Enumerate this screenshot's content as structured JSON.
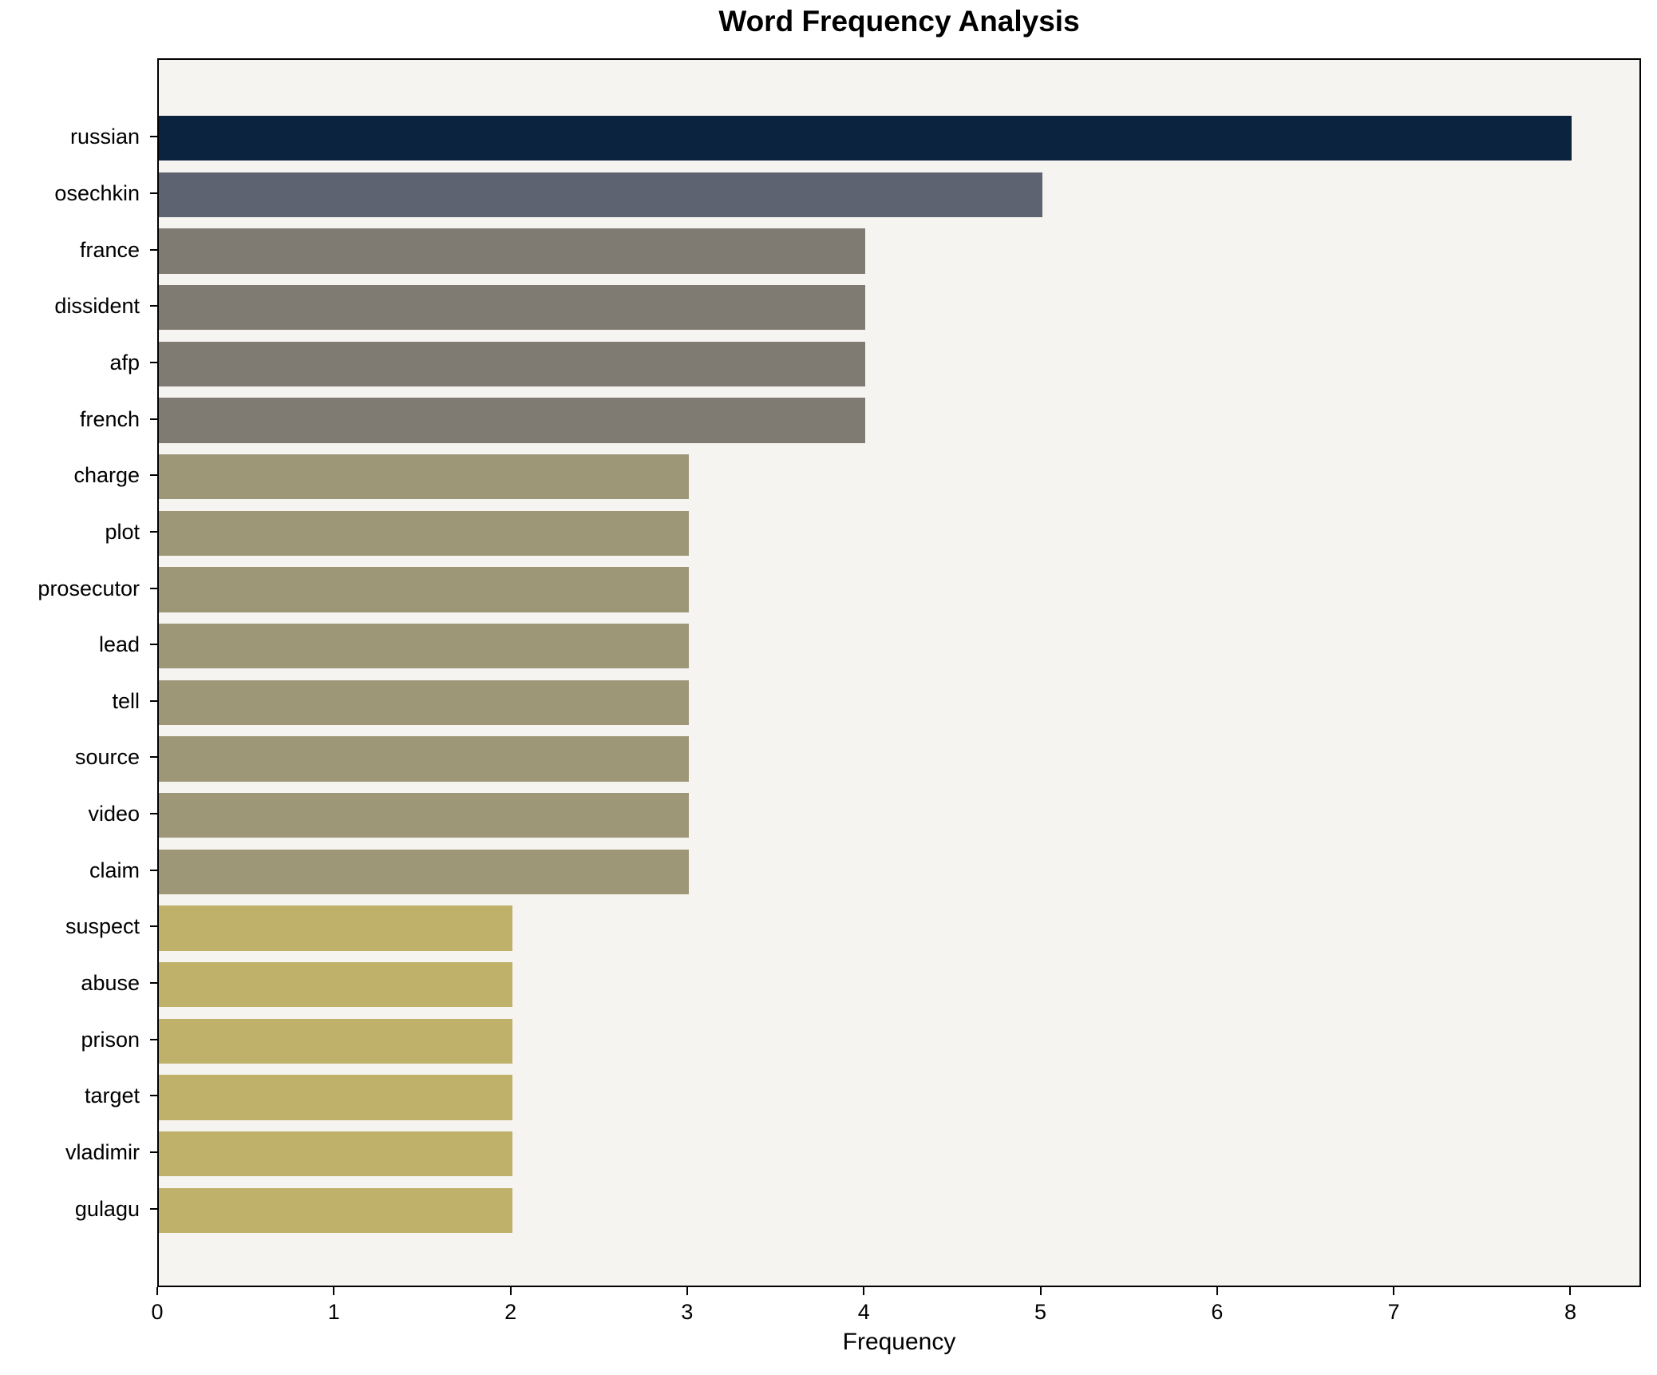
{
  "chart_data": {
    "type": "bar",
    "orientation": "horizontal",
    "title": "Word Frequency Analysis",
    "xlabel": "Frequency",
    "ylabel": "",
    "categories": [
      "russian",
      "osechkin",
      "france",
      "dissident",
      "afp",
      "french",
      "charge",
      "plot",
      "prosecutor",
      "lead",
      "tell",
      "source",
      "video",
      "claim",
      "suspect",
      "abuse",
      "prison",
      "target",
      "vladimir",
      "gulagu"
    ],
    "values": [
      8,
      5,
      4,
      4,
      4,
      4,
      3,
      3,
      3,
      3,
      3,
      3,
      3,
      3,
      2,
      2,
      2,
      2,
      2,
      2
    ],
    "bar_colors": [
      "#0c2340",
      "#5e6372",
      "#7f7b73",
      "#7f7b73",
      "#7f7b73",
      "#7f7b73",
      "#9d9677",
      "#9d9677",
      "#9d9677",
      "#9d9677",
      "#9d9677",
      "#9d9677",
      "#9d9677",
      "#9d9677",
      "#bfb06a",
      "#bfb06a",
      "#bfb06a",
      "#bfb06a",
      "#bfb06a",
      "#bfb06a"
    ],
    "x_ticks": [
      "0",
      "1",
      "2",
      "3",
      "4",
      "5",
      "6",
      "7",
      "8"
    ],
    "xlim": [
      0,
      8.4
    ],
    "grid": false,
    "legend": false,
    "plot_background": "#f5f4f1",
    "figure_background": "#ffffff",
    "bar_height_fraction": 0.8
  }
}
